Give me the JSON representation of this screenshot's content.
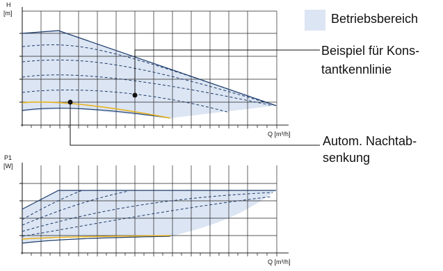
{
  "legend": {
    "label": "Betriebsbereich",
    "swatch_color": "#dce5f3"
  },
  "top_chart": {
    "y_axis_symbol": "H",
    "y_axis_unit": "[m]",
    "x_axis_label": "Q [m³/h]"
  },
  "bottom_chart": {
    "y_axis_symbol": "P1",
    "y_axis_unit": "[W]",
    "x_axis_label": "Q [m³/h]"
  },
  "callouts": {
    "constant_curve_line1": "Beispiel für Kons-",
    "constant_curve_line2": "tantkennlinie",
    "night_mode_line1": "Autom. Nachtab-",
    "night_mode_line2": "senkung"
  },
  "colors": {
    "area_fill": "#dce5f3",
    "curve_stroke": "#1a3a6b",
    "night_curve": "#e8b21a",
    "grid": "#222222",
    "callout_line": "#111111"
  }
}
